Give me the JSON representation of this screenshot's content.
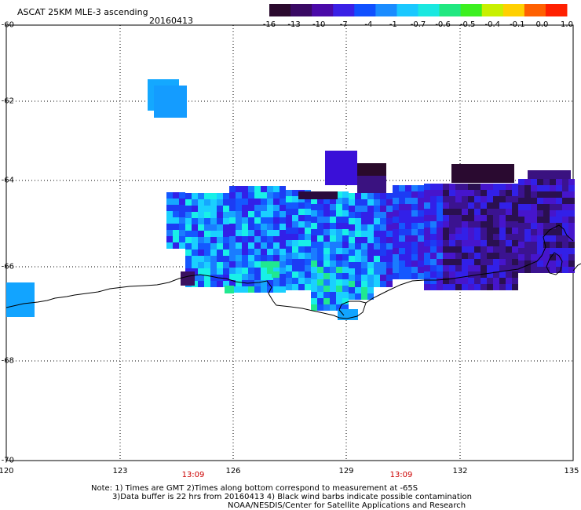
{
  "header": {
    "title": "ASCAT 25KM MLE-3 ascending",
    "date": "20160413"
  },
  "colorbar": {
    "labels": [
      "-16",
      "-13",
      "-10",
      "-7",
      "-4",
      "-1",
      "-0.7",
      "-0.6",
      "-0.5",
      "-0.4",
      "-0.1",
      "0.0",
      "1.0"
    ],
    "colors": [
      "#2b0a2e",
      "#3a0a64",
      "#4a0aa8",
      "#3a20e6",
      "#1050ff",
      "#1a8cff",
      "#1ac8ff",
      "#1ae8e0",
      "#20e880",
      "#3cf020",
      "#c8f000",
      "#ffd000",
      "#ff6000",
      "#ff2000"
    ]
  },
  "map": {
    "lat_labels": [
      "-60",
      "-62",
      "-64",
      "-66",
      "-68",
      "-70"
    ],
    "lon_labels": [
      "120",
      "123",
      "126",
      "129",
      "132",
      "135"
    ],
    "pass_times": [
      "13:09",
      "13:09"
    ]
  },
  "notes": {
    "line1": "Note: 1) Times are GMT 2)Times along bottom correspond to measurement at -65S",
    "line2": "3)Data buffer is 22 hrs from 20160413 4) Black wind barbs indicate possible contamination",
    "line3": "NOAA/NESDIS/Center for Satellite Applications and Research"
  }
}
